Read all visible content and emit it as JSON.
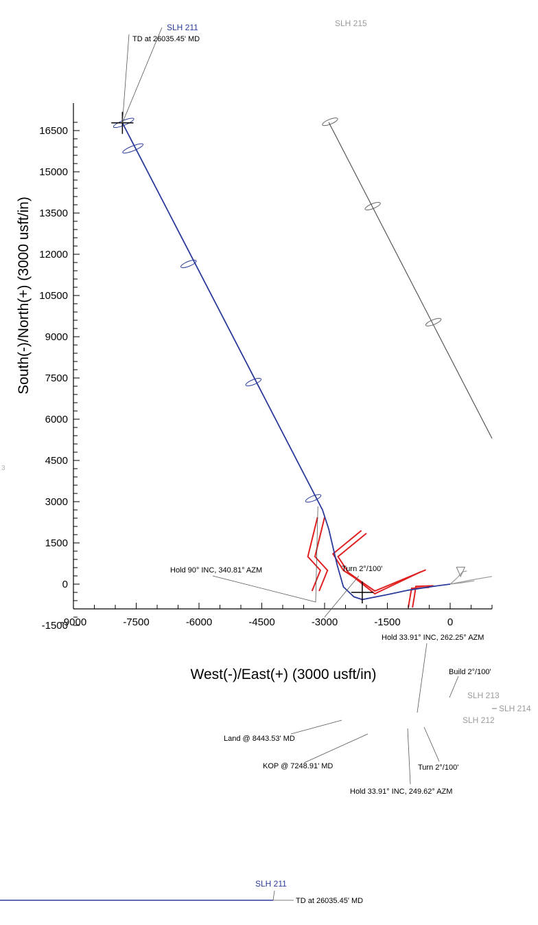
{
  "chart_data": {
    "type": "line",
    "xlabel": "West(-)/East(+) (3000 usft/in)",
    "ylabel": "South(-)/North(+) (3000 usft/in)",
    "xlim": [
      -9000,
      1000
    ],
    "ylim": [
      -2000,
      17500
    ],
    "x_ticks": [
      -9000,
      -7500,
      -6000,
      -4500,
      -3000,
      -1500,
      0
    ],
    "y_ticks": [
      -1500,
      0,
      1500,
      3000,
      4500,
      6000,
      7500,
      9000,
      10500,
      12000,
      13500,
      15000,
      16500
    ],
    "x_tick_labels": [
      "-9000",
      "-7500",
      "-6000",
      "-4500",
      "-3000",
      "-1500",
      "0"
    ],
    "y_tick_labels": [
      "-1500",
      "0",
      "1500",
      "3000",
      "4500",
      "6000",
      "7500",
      "9000",
      "10500",
      "12000",
      "13500",
      "15000",
      "16500"
    ],
    "colors": {
      "slh211": "#2a3a9a",
      "offset": "#555555",
      "offset_label": "#9a9a9a",
      "hazard": "#e02020"
    },
    "series": [
      {
        "name": "SLH 211",
        "color": "#2a3a9a",
        "x": [
          0,
          -400,
          -1000,
          -1500,
          -2100,
          -2300,
          -2550,
          -2700,
          -2900,
          -3050,
          -7830
        ],
        "y": [
          0,
          -80,
          -220,
          -380,
          -560,
          -460,
          -100,
          700,
          2000,
          2700,
          16780
        ]
      },
      {
        "name": "SLH 215",
        "color": "#555555",
        "x": [
          -2900,
          1000
        ],
        "y": [
          16800,
          5300
        ]
      },
      {
        "name": "SLH 212",
        "color": "#9a9a9a",
        "x": [
          0,
          280,
          580
        ],
        "y": [
          0,
          50,
          120
        ]
      },
      {
        "name": "SLH 214",
        "color": "#9a9a9a",
        "x": [
          0,
          500,
          1000
        ],
        "y": [
          0,
          150,
          280
        ]
      },
      {
        "name": "SLH 213",
        "color": "#9a9a9a",
        "x": [
          0,
          150,
          300,
          400
        ],
        "y": [
          0,
          200,
          450,
          480
        ]
      }
    ],
    "uncertainty_ellipses": [
      {
        "x": -7800,
        "y": 16780
      },
      {
        "x": -7580,
        "y": 15850
      },
      {
        "x": -6250,
        "y": 11650
      },
      {
        "x": -4700,
        "y": 7350
      },
      {
        "x": -3270,
        "y": 3120
      },
      {
        "x": -2870,
        "y": 16820
      },
      {
        "x": -1850,
        "y": 13750
      },
      {
        "x": -400,
        "y": 9530
      }
    ],
    "annotations": [
      {
        "text": "SLH 211",
        "x": -7830,
        "y": 16780
      },
      {
        "text": "TD at 26035.45' MD",
        "x": -7830,
        "y": 16780
      },
      {
        "text": "SLH 215",
        "x": -2900,
        "y": 16800
      },
      {
        "text": "Hold 90° INC, 340.81° AZM",
        "x": -3160,
        "y": 2880
      },
      {
        "text": "Turn 2°/100'",
        "x": -3100,
        "y": 2450
      },
      {
        "text": "Hold 33.91° INC, 262.25° AZM",
        "x": -900,
        "y": -110
      },
      {
        "text": "Build 2°/100'",
        "x": 200,
        "y": 0
      },
      {
        "text": "SLH 213",
        "x": 300,
        "y": 450
      },
      {
        "text": "SLH 214",
        "x": 1000,
        "y": 280
      },
      {
        "text": "SLH 212",
        "x": 580,
        "y": 120
      },
      {
        "text": "Land @ 8443.53' MD",
        "x": -2620,
        "y": -310
      },
      {
        "text": "KOP @ 7248.91' MD",
        "x": -2100,
        "y": -550
      },
      {
        "text": "Turn 2°/100'",
        "x": -990,
        "y": -140
      },
      {
        "text": "Hold 33.91° INC, 249.62° AZM",
        "x": -1300,
        "y": -260
      }
    ]
  },
  "footer": {
    "well_label": "SLH 211",
    "td_label": "TD at 26035.45' MD"
  },
  "stray_mark": "3"
}
